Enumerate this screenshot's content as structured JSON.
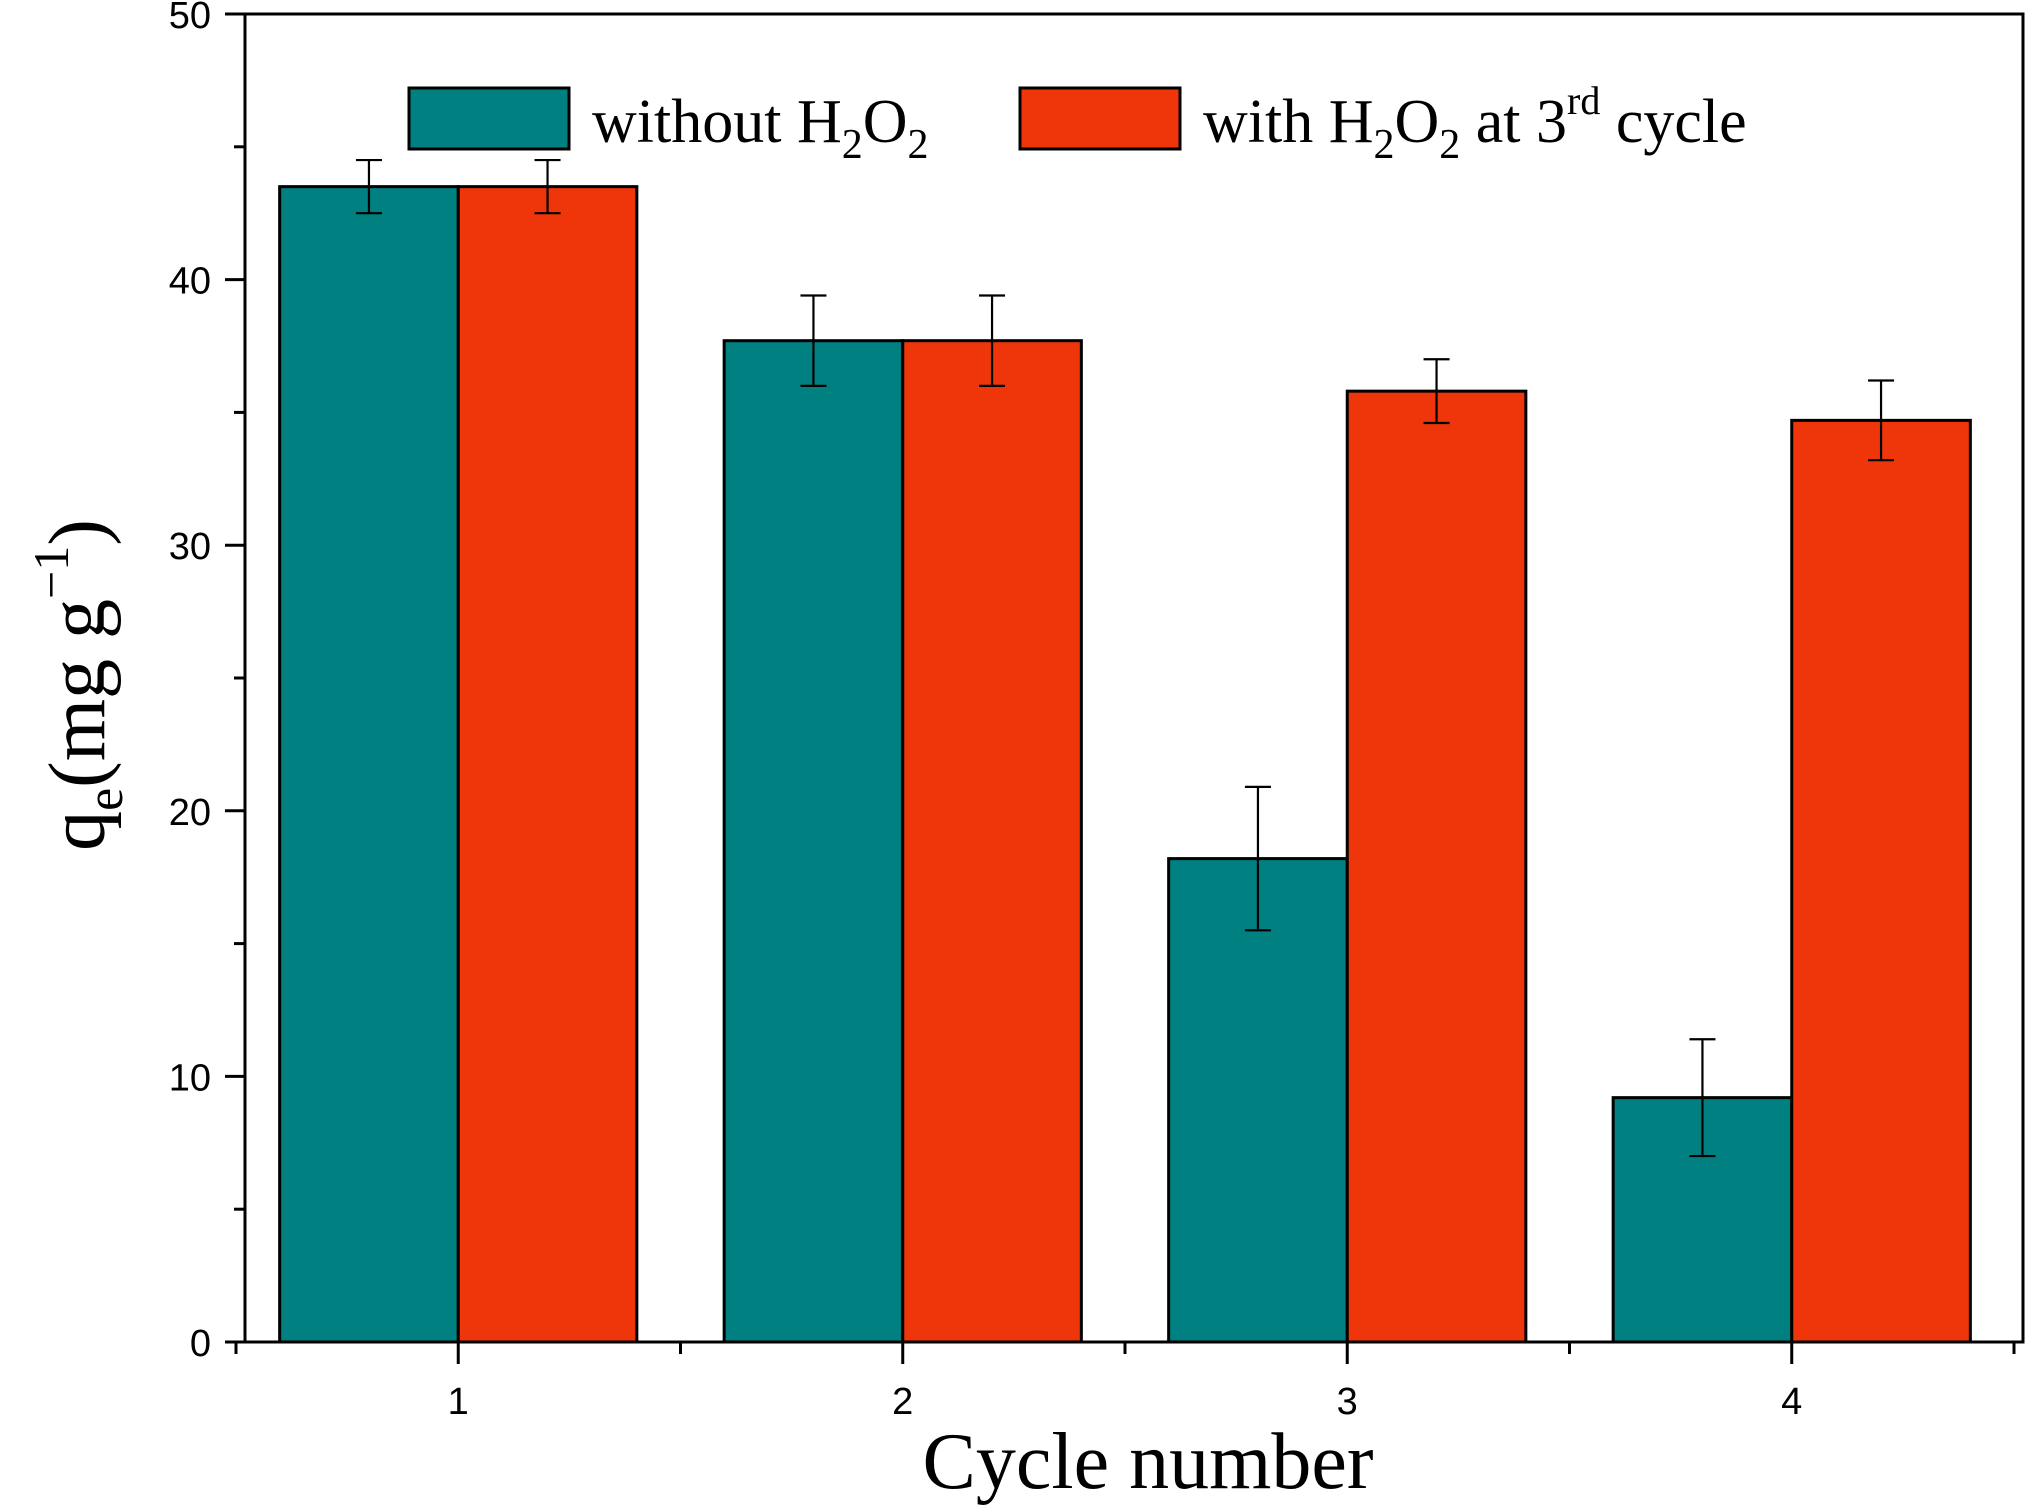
{
  "chart_data": {
    "type": "bar",
    "categories": [
      "1",
      "2",
      "3",
      "4"
    ],
    "series": [
      {
        "name": "without H2O2",
        "legend": {
          "pre": "without H",
          "sub1": "2",
          "mid": "O",
          "sub2": "2",
          "sup": "",
          "post": ""
        },
        "color": "#008080",
        "values": [
          43.5,
          37.7,
          18.2,
          9.2
        ],
        "errors": [
          1.0,
          1.7,
          2.7,
          2.2
        ]
      },
      {
        "name": "with H2O2 at 3rd cycle",
        "legend": {
          "pre": "with H",
          "sub1": "2",
          "mid": "O",
          "sub2": "2",
          "sup_pre": " at 3",
          "sup": "rd",
          "post": " cycle"
        },
        "color": "#EE360A",
        "values": [
          43.5,
          37.7,
          35.8,
          34.7
        ],
        "errors": [
          1.0,
          1.7,
          1.2,
          1.5
        ]
      }
    ],
    "xlabel": "Cycle number",
    "ylabel": {
      "q": "q",
      "sub": "e",
      "open": "(mg g",
      "sup": "−1",
      "close": ")"
    },
    "ylim": [
      0,
      50
    ],
    "yticks": [
      "0",
      "10",
      "20",
      "30",
      "40",
      "50"
    ],
    "legend_position": "top",
    "grid": false
  }
}
